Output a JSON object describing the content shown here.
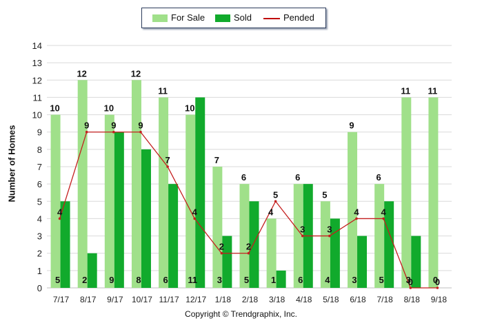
{
  "legend": {
    "for_sale": "For Sale",
    "sold": "Sold",
    "pended": "Pended"
  },
  "footer": {
    "copyright": "Copyright © Trendgraphix, Inc."
  },
  "colors": {
    "for_sale": "#a0e08a",
    "sold": "#11aa2c",
    "pended": "#c41e1e",
    "grid": "#d9d9d9"
  },
  "chart_data": {
    "type": "bar",
    "title": "",
    "xlabel": "",
    "ylabel": "Number of Homes",
    "ylim": [
      0,
      14
    ],
    "yticks": [
      0,
      1,
      2,
      3,
      4,
      5,
      6,
      7,
      8,
      9,
      10,
      11,
      12,
      13,
      14
    ],
    "grid": true,
    "legend_position": "top-center",
    "categories": [
      "7/17",
      "8/17",
      "9/17",
      "10/17",
      "11/17",
      "12/17",
      "1/18",
      "2/18",
      "3/18",
      "4/18",
      "5/18",
      "6/18",
      "7/18",
      "8/18",
      "9/18"
    ],
    "series": [
      {
        "name": "For Sale",
        "kind": "bar",
        "values": [
          10,
          12,
          10,
          12,
          11,
          10,
          7,
          6,
          4,
          6,
          5,
          9,
          6,
          11,
          11
        ]
      },
      {
        "name": "Sold",
        "kind": "bar",
        "values": [
          5,
          2,
          9,
          8,
          6,
          11,
          3,
          5,
          1,
          6,
          4,
          3,
          5,
          3,
          0
        ]
      },
      {
        "name": "Pended",
        "kind": "line",
        "values": [
          4,
          9,
          9,
          9,
          7,
          4,
          2,
          2,
          5,
          3,
          3,
          4,
          4,
          0,
          0
        ]
      }
    ]
  }
}
